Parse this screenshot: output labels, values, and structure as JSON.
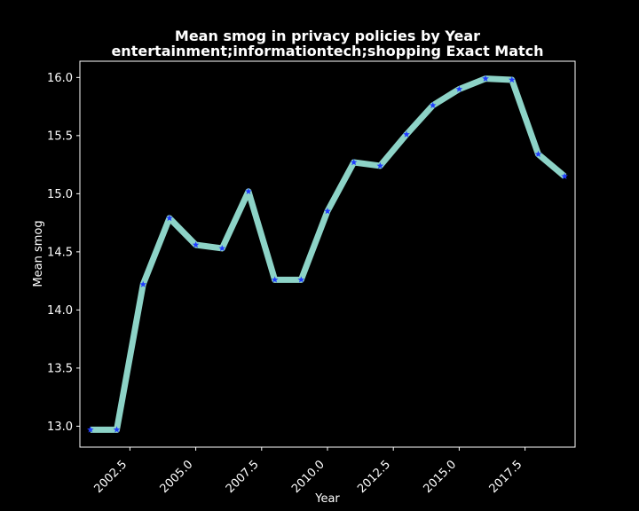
{
  "chart_data": {
    "type": "line",
    "title": "Mean smog in privacy policies by Year",
    "subtitle": "entertainment;informationtech;shopping Exact Match",
    "xlabel": "Year",
    "ylabel": "Mean smog",
    "xlim": [
      2000.6,
      2019.4
    ],
    "ylim": [
      12.82,
      16.14
    ],
    "x_ticks": [
      2002.5,
      2005.0,
      2007.5,
      2010.0,
      2012.5,
      2015.0,
      2017.5
    ],
    "x_tick_labels": [
      "2002.5",
      "2005.0",
      "2007.5",
      "2010.0",
      "2012.5",
      "2015.0",
      "2017.5"
    ],
    "y_ticks": [
      13.0,
      13.5,
      14.0,
      14.5,
      15.0,
      15.5,
      16.0
    ],
    "y_tick_labels": [
      "13.0",
      "13.5",
      "14.0",
      "14.5",
      "15.0",
      "15.5",
      "16.0"
    ],
    "grid": false,
    "legend": "none",
    "series": [
      {
        "x": [
          2001,
          2002,
          2003,
          2004,
          2005,
          2006,
          2007,
          2008,
          2009,
          2010,
          2011,
          2012,
          2013,
          2014,
          2015,
          2016,
          2017,
          2018,
          2019
        ],
        "y": [
          12.97,
          12.97,
          14.22,
          14.79,
          14.56,
          14.53,
          15.02,
          14.26,
          14.26,
          14.85,
          15.27,
          15.24,
          15.51,
          15.76,
          15.9,
          15.99,
          15.98,
          15.34,
          15.15
        ],
        "line_color": "#8dd3c7",
        "marker_color": "#1f3cff",
        "marker": "star"
      }
    ]
  }
}
